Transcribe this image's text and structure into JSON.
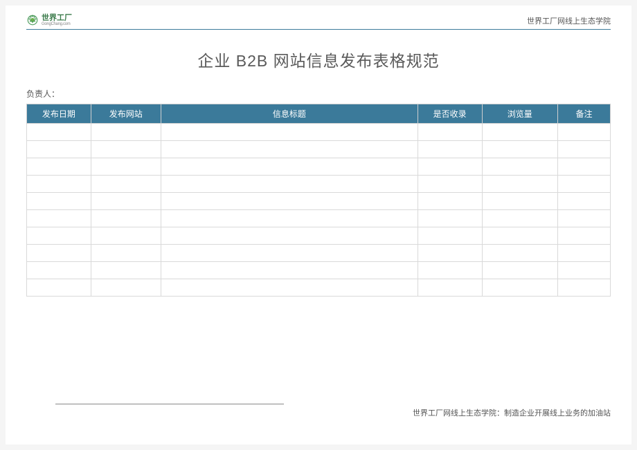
{
  "header": {
    "logo_main": "世界工厂",
    "logo_sub": "GongChang.com",
    "right_text": "世界工厂网线上生态学院"
  },
  "title": "企业 B2B 网站信息发布表格规范",
  "responsible_label": "负责人：",
  "table": {
    "header_bg": "#3b7a9a",
    "header_fg": "#ffffff",
    "border_color": "#d9d9d9",
    "columns": [
      {
        "label": "发布日期",
        "width": "11%"
      },
      {
        "label": "发布网站",
        "width": "12%"
      },
      {
        "label": "信息标题",
        "width": "44%"
      },
      {
        "label": "是否收录",
        "width": "11%"
      },
      {
        "label": "浏览量",
        "width": "13%"
      },
      {
        "label": "备注",
        "width": "9%"
      }
    ],
    "empty_rows": 10
  },
  "footer": "世界工厂网线上生态学院：制造企业开展线上业务的加油站"
}
